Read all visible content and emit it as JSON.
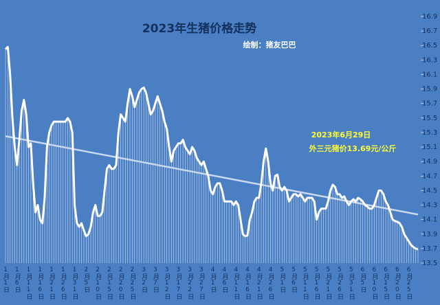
{
  "chart_data": {
    "type": "line",
    "title": "2023年生猪价格走势",
    "annotations": [
      "绘制：猪友巴巴",
      "2023年6月29日",
      "外三元猪价13.69元/公斤"
    ],
    "color": "#ffffff",
    "trend": {
      "start": 15.25,
      "end": 14.17,
      "color": "#c9d9ef"
    },
    "ylim": [
      13.5,
      16.9
    ],
    "yticks": [
      13.5,
      13.7,
      13.9,
      14.1,
      14.3,
      14.5,
      14.7,
      14.9,
      15.1,
      15.3,
      15.5,
      15.7,
      15.9,
      16.1,
      16.3,
      16.5,
      16.7,
      16.9
    ],
    "categories": [
      "1月1日",
      null,
      null,
      null,
      null,
      "1月6日",
      null,
      null,
      null,
      null,
      "1月11日",
      null,
      null,
      null,
      null,
      "1月16日",
      null,
      null,
      null,
      null,
      "1月21日",
      null,
      null,
      null,
      null,
      "1月26日",
      null,
      null,
      null,
      null,
      "1月31日",
      null,
      null,
      null,
      null,
      "2月5日",
      null,
      null,
      null,
      null,
      "2月10日",
      null,
      null,
      null,
      null,
      "2月15日",
      null,
      null,
      null,
      null,
      "2月20日",
      null,
      null,
      null,
      null,
      "2月25日",
      null,
      null,
      null,
      null,
      "3月2日",
      null,
      null,
      null,
      null,
      "3月7日",
      null,
      null,
      null,
      null,
      "3月12日",
      null,
      null,
      null,
      null,
      "3月17日",
      null,
      null,
      null,
      null,
      "3月22日",
      null,
      null,
      null,
      null,
      "3月27日",
      null,
      null,
      null,
      null,
      "4月1日",
      null,
      null,
      null,
      null,
      "4月6日",
      null,
      null,
      null,
      null,
      "4月11日",
      null,
      null,
      null,
      null,
      "4月16日",
      null,
      null,
      null,
      null,
      "4月21日",
      null,
      null,
      null,
      null,
      "4月26日",
      null,
      null,
      null,
      null,
      "5月1日",
      null,
      null,
      null,
      null,
      "5月6日",
      null,
      null,
      null,
      null,
      "5月11日",
      null,
      null,
      null,
      null,
      "5月16日",
      null,
      null,
      null,
      null,
      "5月21日",
      null,
      null,
      null,
      null,
      "5月26日",
      null,
      null,
      null,
      null,
      "5月31日",
      null,
      null,
      null,
      null,
      "6月5日",
      null,
      null,
      null,
      null,
      "6月10日",
      null,
      null,
      null,
      null,
      "6月15日",
      null,
      null,
      null,
      null,
      "6月20日",
      null,
      null,
      null,
      null,
      "6月25日",
      null,
      null,
      null,
      null
    ],
    "values": [
      16.45,
      16.48,
      16.1,
      15.5,
      15.1,
      14.85,
      15.2,
      15.6,
      15.75,
      15.55,
      15.1,
      15.15,
      14.6,
      14.2,
      14.3,
      14.1,
      14.05,
      14.4,
      15.1,
      15.3,
      15.4,
      15.45,
      15.45,
      15.45,
      15.45,
      15.45,
      15.45,
      15.5,
      15.45,
      15.3,
      14.3,
      14.05,
      14.0,
      14.05,
      13.95,
      13.87,
      13.9,
      14.0,
      14.2,
      14.3,
      14.15,
      14.15,
      14.2,
      14.5,
      14.8,
      14.85,
      14.8,
      14.8,
      14.85,
      15.3,
      15.55,
      15.5,
      15.45,
      15.7,
      15.9,
      15.8,
      15.65,
      15.75,
      15.85,
      15.9,
      15.92,
      15.85,
      15.7,
      15.55,
      15.6,
      15.7,
      15.8,
      15.7,
      15.6,
      15.45,
      15.35,
      15.1,
      14.9,
      15.05,
      15.1,
      15.15,
      15.15,
      15.2,
      15.1,
      15.05,
      15.0,
      15.1,
      15.05,
      14.95,
      14.9,
      14.85,
      14.9,
      14.8,
      14.7,
      14.5,
      14.45,
      14.55,
      14.6,
      14.6,
      14.5,
      14.35,
      14.35,
      14.35,
      14.35,
      14.3,
      14.35,
      14.3,
      14.1,
      13.9,
      13.87,
      13.88,
      14.1,
      14.2,
      14.35,
      14.4,
      14.4,
      14.6,
      14.9,
      15.08,
      14.9,
      14.6,
      14.5,
      14.7,
      14.72,
      14.55,
      14.5,
      14.55,
      14.5,
      14.35,
      14.4,
      14.45,
      14.45,
      14.42,
      14.45,
      14.4,
      14.35,
      14.4,
      14.4,
      14.4,
      14.35,
      14.1,
      14.2,
      14.25,
      14.25,
      14.25,
      14.35,
      14.5,
      14.58,
      14.55,
      14.45,
      14.45,
      14.4,
      14.42,
      14.35,
      14.3,
      14.35,
      14.38,
      14.35,
      14.4,
      14.38,
      14.35,
      14.3,
      14.28,
      14.25,
      14.25,
      14.3,
      14.4,
      14.5,
      14.5,
      14.45,
      14.35,
      14.3,
      14.2,
      14.1,
      14.08,
      14.07,
      14.05,
      14.0,
      13.9,
      13.85,
      13.8,
      13.75,
      13.72,
      13.7,
      13.69
    ]
  }
}
